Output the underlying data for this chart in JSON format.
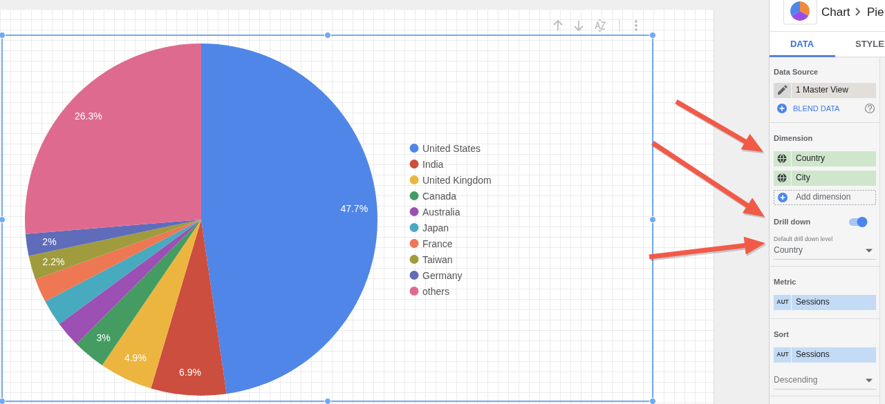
{
  "chart_data": [
    {
      "type": "pie",
      "categories": [
        "United States",
        "India",
        "United Kingdom",
        "Canada",
        "Australia",
        "Japan",
        "France",
        "Taiwan",
        "Germany",
        "others"
      ],
      "values": [
        47.7,
        6.9,
        4.9,
        3,
        2.4,
        2.4,
        2.2,
        2.2,
        2,
        26.3
      ],
      "colors": [
        "#5086e8",
        "#cc4e3f",
        "#ecb53f",
        "#449c62",
        "#9c50b4",
        "#48aabe",
        "#ee7754",
        "#a09c3e",
        "#5e6cba",
        "#de6b8f"
      ],
      "value_labels": [
        "47.7%",
        "6.9%",
        "4.9%",
        "3%",
        null,
        null,
        null,
        "2.2%",
        "2%",
        "26.3%"
      ],
      "legend": "right"
    },
    {
      "type": "other",
      "annotations": [
        "Chart",
        "Pie",
        "DATA",
        "STYLE",
        "Data Source",
        "1 Master View",
        "BLEND DATA",
        "Dimension",
        "Country",
        "City",
        "Add dimension",
        "Drill down",
        "Default drill down level",
        "Country",
        "Metric",
        "AUT",
        "Sessions",
        "Sort",
        "AUT",
        "Sessions",
        "Descending"
      ]
    }
  ]
}
